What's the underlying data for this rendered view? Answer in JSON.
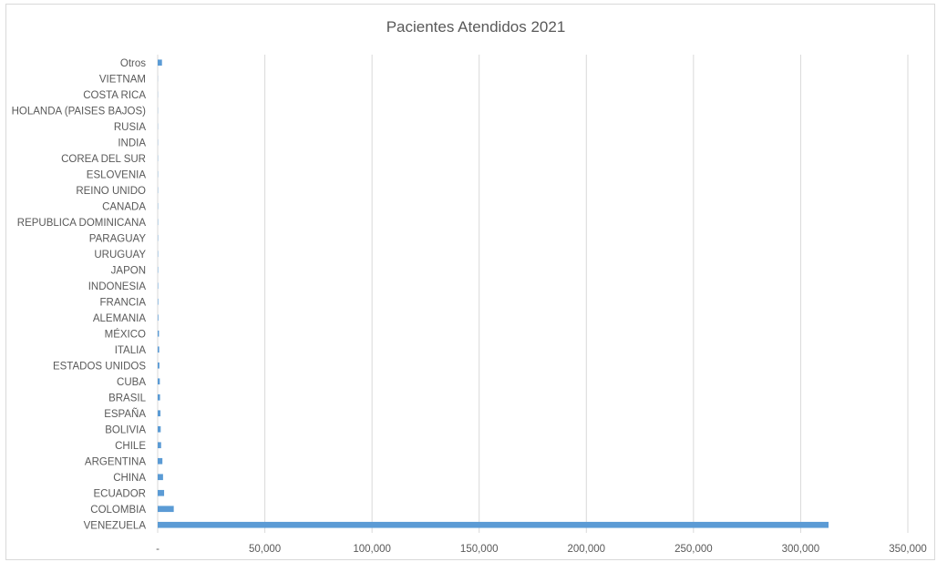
{
  "chart_data": {
    "type": "bar",
    "orientation": "horizontal",
    "title": "Pacientes Atendidos 2021",
    "xlabel": "",
    "ylabel": "",
    "xlim": [
      0,
      350000
    ],
    "x_ticks": [
      0,
      50000,
      100000,
      150000,
      200000,
      250000,
      300000,
      350000
    ],
    "x_tick_labels": [
      "-",
      "50,000",
      "100,000",
      "150,000",
      "200,000",
      "250,000",
      "300,000",
      "350,000"
    ],
    "grid": "vertical",
    "legend": "none",
    "bar_color": "#5b9bd5",
    "gridline_color": "#d9d9d9",
    "categories": [
      "VENEZUELA",
      "COLOMBIA",
      "ECUADOR",
      "CHINA",
      "ARGENTINA",
      "CHILE",
      "BOLIVIA",
      "ESPAÑA",
      "BRASIL",
      "CUBA",
      "ESTADOS UNIDOS",
      "ITALIA",
      "MÉXICO",
      "ALEMANIA",
      "FRANCIA",
      "INDONESIA",
      "JAPON",
      "URUGUAY",
      "PARAGUAY",
      "REPUBLICA DOMINICANA",
      "CANADA",
      "REINO UNIDO",
      "ESLOVENIA",
      "COREA DEL SUR",
      "INDIA",
      "RUSIA",
      "HOLANDA (PAISES BAJOS)",
      "COSTA RICA",
      "VIETNAM",
      "Otros"
    ],
    "values": [
      313000,
      7500,
      3000,
      2500,
      2200,
      1600,
      1400,
      1300,
      1100,
      1000,
      800,
      700,
      600,
      300,
      250,
      200,
      180,
      160,
      150,
      140,
      130,
      120,
      110,
      100,
      90,
      80,
      70,
      60,
      50,
      2000
    ]
  }
}
